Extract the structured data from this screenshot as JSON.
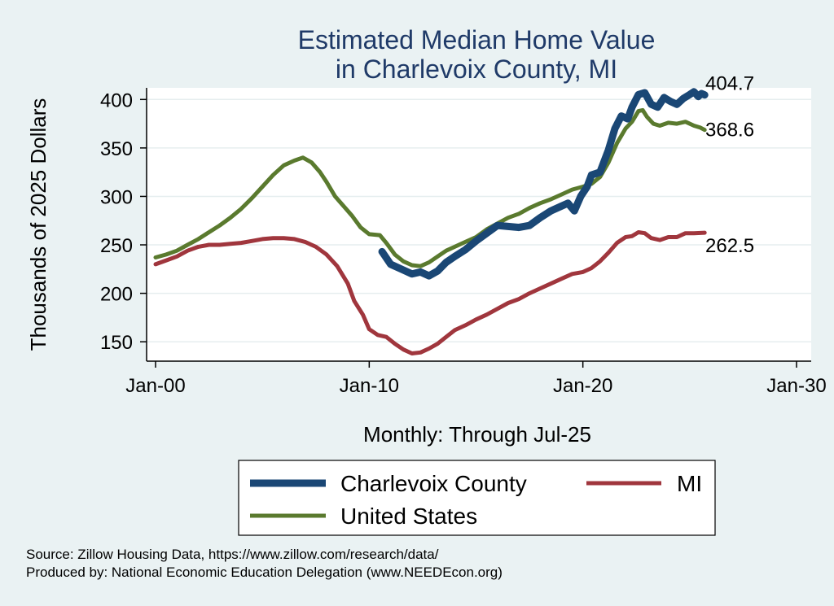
{
  "chart_data": {
    "type": "line",
    "title": "Estimated Median Home Value",
    "subtitle": "in Charlevoix County, MI",
    "xlabel": "Monthly: Through Jul-25",
    "ylabel": "Thousands of 2025 Dollars",
    "xlim": [
      2000,
      2030
    ],
    "ylim": [
      130,
      412
    ],
    "xticks": [
      {
        "value": 2000,
        "label": "Jan-00"
      },
      {
        "value": 2010,
        "label": "Jan-10"
      },
      {
        "value": 2020,
        "label": "Jan-20"
      },
      {
        "value": 2030,
        "label": "Jan-30"
      }
    ],
    "yticks": [
      150,
      200,
      250,
      300,
      350,
      400
    ],
    "grid": true,
    "legend_position": "bottom",
    "series": [
      {
        "name": "Charlevoix County",
        "color": "#1a4775",
        "stroke": 9,
        "end_label": "404.7",
        "end_value": 404.7,
        "points": [
          [
            2010.6,
            243
          ],
          [
            2011.0,
            230
          ],
          [
            2011.5,
            225
          ],
          [
            2012.0,
            220
          ],
          [
            2012.4,
            222
          ],
          [
            2012.8,
            218
          ],
          [
            2013.2,
            223
          ],
          [
            2013.6,
            232
          ],
          [
            2014.0,
            238
          ],
          [
            2014.5,
            245
          ],
          [
            2015.0,
            254
          ],
          [
            2015.5,
            262
          ],
          [
            2016.0,
            270
          ],
          [
            2016.5,
            269
          ],
          [
            2017.0,
            268
          ],
          [
            2017.5,
            270
          ],
          [
            2018.0,
            278
          ],
          [
            2018.5,
            285
          ],
          [
            2019.0,
            290
          ],
          [
            2019.3,
            293
          ],
          [
            2019.6,
            285
          ],
          [
            2019.9,
            300
          ],
          [
            2020.2,
            310
          ],
          [
            2020.4,
            322
          ],
          [
            2020.8,
            325
          ],
          [
            2021.2,
            348
          ],
          [
            2021.5,
            370
          ],
          [
            2021.8,
            383
          ],
          [
            2022.1,
            380
          ],
          [
            2022.3,
            392
          ],
          [
            2022.6,
            405
          ],
          [
            2022.9,
            407
          ],
          [
            2023.2,
            395
          ],
          [
            2023.5,
            392
          ],
          [
            2023.8,
            402
          ],
          [
            2024.1,
            398
          ],
          [
            2024.4,
            395
          ],
          [
            2024.7,
            401
          ],
          [
            2025.0,
            405
          ],
          [
            2025.2,
            408
          ],
          [
            2025.4,
            403
          ],
          [
            2025.55,
            406
          ],
          [
            2025.7,
            404.7
          ]
        ]
      },
      {
        "name": "United States",
        "color": "#5a7a2e",
        "stroke": 5,
        "end_label": "368.6",
        "end_value": 368.6,
        "points": [
          [
            2000.0,
            237
          ],
          [
            2000.5,
            240
          ],
          [
            2001.0,
            244
          ],
          [
            2001.5,
            250
          ],
          [
            2002.0,
            256
          ],
          [
            2002.5,
            263
          ],
          [
            2003.0,
            270
          ],
          [
            2003.5,
            278
          ],
          [
            2004.0,
            287
          ],
          [
            2004.5,
            298
          ],
          [
            2005.0,
            310
          ],
          [
            2005.5,
            322
          ],
          [
            2006.0,
            332
          ],
          [
            2006.5,
            337
          ],
          [
            2006.9,
            340
          ],
          [
            2007.3,
            335
          ],
          [
            2007.7,
            325
          ],
          [
            2008.0,
            315
          ],
          [
            2008.4,
            300
          ],
          [
            2008.8,
            290
          ],
          [
            2009.2,
            280
          ],
          [
            2009.6,
            268
          ],
          [
            2010.0,
            261
          ],
          [
            2010.5,
            260
          ],
          [
            2010.8,
            252
          ],
          [
            2011.2,
            240
          ],
          [
            2011.6,
            233
          ],
          [
            2012.0,
            229
          ],
          [
            2012.4,
            228
          ],
          [
            2012.8,
            232
          ],
          [
            2013.2,
            238
          ],
          [
            2013.6,
            244
          ],
          [
            2014.0,
            248
          ],
          [
            2014.5,
            253
          ],
          [
            2015.0,
            258
          ],
          [
            2015.5,
            266
          ],
          [
            2016.0,
            272
          ],
          [
            2016.5,
            278
          ],
          [
            2017.0,
            282
          ],
          [
            2017.5,
            288
          ],
          [
            2018.0,
            293
          ],
          [
            2018.5,
            297
          ],
          [
            2019.0,
            302
          ],
          [
            2019.5,
            307
          ],
          [
            2020.0,
            310
          ],
          [
            2020.4,
            313
          ],
          [
            2020.8,
            320
          ],
          [
            2021.2,
            335
          ],
          [
            2021.6,
            355
          ],
          [
            2022.0,
            370
          ],
          [
            2022.3,
            377
          ],
          [
            2022.6,
            388
          ],
          [
            2022.8,
            389
          ],
          [
            2023.0,
            382
          ],
          [
            2023.3,
            375
          ],
          [
            2023.6,
            373
          ],
          [
            2024.0,
            376
          ],
          [
            2024.4,
            375
          ],
          [
            2024.8,
            377
          ],
          [
            2025.2,
            373
          ],
          [
            2025.5,
            371
          ],
          [
            2025.7,
            368.6
          ]
        ]
      },
      {
        "name": "MI",
        "color": "#a0363d",
        "stroke": 5,
        "end_label": "262.5",
        "end_value": 262.5,
        "points": [
          [
            2000.0,
            230
          ],
          [
            2000.5,
            234
          ],
          [
            2001.0,
            238
          ],
          [
            2001.5,
            244
          ],
          [
            2002.0,
            248
          ],
          [
            2002.5,
            250
          ],
          [
            2003.0,
            250
          ],
          [
            2003.5,
            251
          ],
          [
            2004.0,
            252
          ],
          [
            2004.5,
            254
          ],
          [
            2005.0,
            256
          ],
          [
            2005.5,
            257
          ],
          [
            2006.0,
            257
          ],
          [
            2006.5,
            256
          ],
          [
            2007.0,
            253
          ],
          [
            2007.5,
            248
          ],
          [
            2008.0,
            240
          ],
          [
            2008.5,
            228
          ],
          [
            2009.0,
            210
          ],
          [
            2009.3,
            192
          ],
          [
            2009.7,
            178
          ],
          [
            2010.0,
            163
          ],
          [
            2010.4,
            157
          ],
          [
            2010.8,
            155
          ],
          [
            2011.2,
            148
          ],
          [
            2011.6,
            142
          ],
          [
            2012.0,
            138
          ],
          [
            2012.4,
            139
          ],
          [
            2012.8,
            143
          ],
          [
            2013.2,
            148
          ],
          [
            2013.6,
            155
          ],
          [
            2014.0,
            162
          ],
          [
            2014.5,
            167
          ],
          [
            2015.0,
            173
          ],
          [
            2015.5,
            178
          ],
          [
            2016.0,
            184
          ],
          [
            2016.5,
            190
          ],
          [
            2017.0,
            194
          ],
          [
            2017.5,
            200
          ],
          [
            2018.0,
            205
          ],
          [
            2018.5,
            210
          ],
          [
            2019.0,
            215
          ],
          [
            2019.5,
            220
          ],
          [
            2020.0,
            222
          ],
          [
            2020.4,
            226
          ],
          [
            2020.8,
            233
          ],
          [
            2021.2,
            242
          ],
          [
            2021.6,
            252
          ],
          [
            2022.0,
            258
          ],
          [
            2022.3,
            259
          ],
          [
            2022.6,
            263
          ],
          [
            2022.9,
            262
          ],
          [
            2023.2,
            257
          ],
          [
            2023.6,
            255
          ],
          [
            2024.0,
            258
          ],
          [
            2024.4,
            258
          ],
          [
            2024.8,
            262
          ],
          [
            2025.2,
            262
          ],
          [
            2025.7,
            262.5
          ]
        ]
      }
    ],
    "legend_rows": [
      [
        "Charlevoix County",
        "MI"
      ],
      [
        "United States"
      ]
    ]
  },
  "source": {
    "line1": "Source: Zillow Housing Data, https://www.zillow.com/research/data/",
    "line2": "Produced by: National Economic Education Delegation (www.NEEDEcon.org)"
  }
}
